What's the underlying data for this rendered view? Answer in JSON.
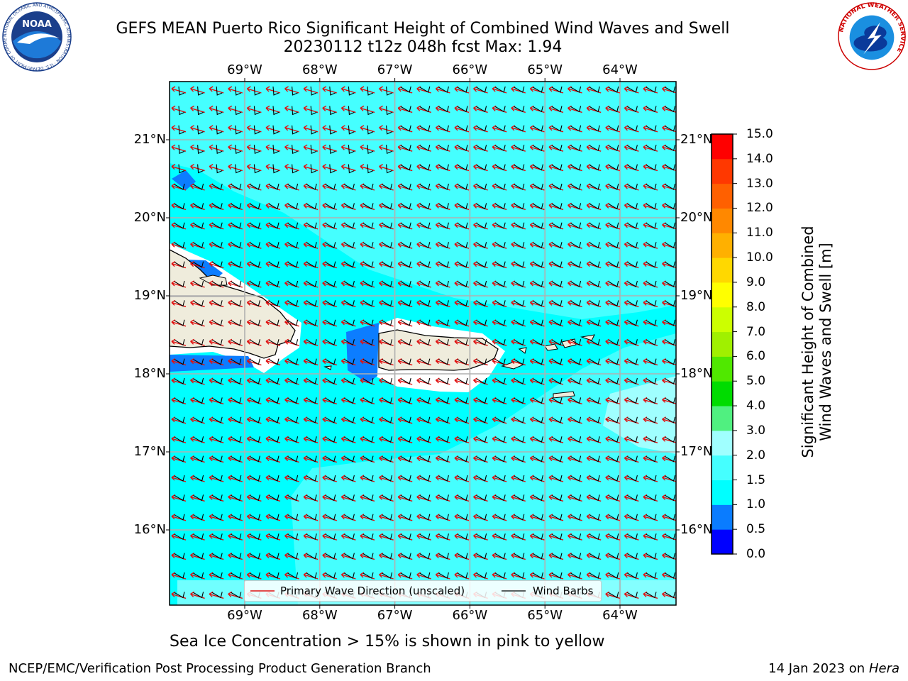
{
  "title": {
    "line1": "GEFS MEAN Puerto Rico Significant Height of Combined Wind Waves and Swell",
    "line2": "20230112 t12z 048h fcst   Max: 1.94"
  },
  "logos": {
    "noaa_text": "NOAA",
    "noaa_ring": "NATIONAL OCEANIC AND ATMOSPHERIC ADMINISTRATION · U.S. DEPARTMENT OF COMMERCE",
    "nws_ring": "NATIONAL WEATHER SERVICE"
  },
  "map": {
    "lon_labels": [
      "69°W",
      "68°W",
      "67°W",
      "66°W",
      "65°W",
      "64°W"
    ],
    "lat_labels_left": [
      "21°N",
      "20°N",
      "19°N",
      "18°N",
      "17°N",
      "16°N"
    ],
    "lat_labels_right": [
      "21°N",
      "20°N",
      "19°N",
      "18°N",
      "17°N",
      "16°N"
    ],
    "legend": {
      "wave_label": "Primary Wave Direction (unscaled)",
      "barb_label": "Wind Barbs",
      "wave_color": "#e01010",
      "barb_color": "#000000"
    },
    "colors": {
      "sea_0_5_1": "#0c7dff",
      "sea_1_1_5": "#00ffff",
      "sea_1_5_2": "#45ffff",
      "sea_2_3": "#a0ffff",
      "land": "#efecdc",
      "nodata": "#ffffff"
    }
  },
  "colorbar": {
    "label_line1": "Significant Height of Combined",
    "label_line2": "Wind Waves and Swell [m]",
    "ticks": [
      "0.0",
      "0.5",
      "1.0",
      "1.5",
      "2.0",
      "3.0",
      "4.0",
      "5.0",
      "6.0",
      "7.0",
      "8.0",
      "9.0",
      "10.0",
      "11.0",
      "12.0",
      "13.0",
      "14.0",
      "15.0"
    ],
    "colors": [
      "#0000ff",
      "#0a7cff",
      "#00ffff",
      "#45ffff",
      "#a0ffff",
      "#50f080",
      "#00dc00",
      "#50e800",
      "#a0f000",
      "#ccff00",
      "#ffff00",
      "#ffd800",
      "#ffb000",
      "#ff8800",
      "#ff6000",
      "#ff3800",
      "#ff0000"
    ]
  },
  "caption": "Sea Ice Concentration > 15% is shown in pink to yellow",
  "footer": {
    "left": "NCEP/EMC/Verification Post Processing Product Generation Branch",
    "right_prefix": "14 Jan 2023 on ",
    "right_machine": "Hera"
  }
}
